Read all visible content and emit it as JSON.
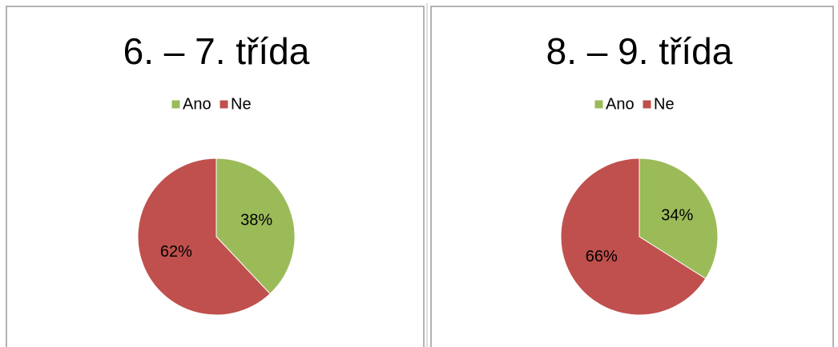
{
  "chart_data": [
    {
      "type": "pie",
      "title": "6. – 7. třída",
      "categories": [
        "Ano",
        "Ne"
      ],
      "values": [
        38,
        62
      ],
      "value_labels": [
        "38%",
        "62%"
      ],
      "colors": [
        "#9bbb59",
        "#c0504d"
      ],
      "legend": "top"
    },
    {
      "type": "pie",
      "title": "8. – 9. třída",
      "categories": [
        "Ano",
        "Ne"
      ],
      "values": [
        34,
        66
      ],
      "value_labels": [
        "34%",
        "66%"
      ],
      "colors": [
        "#9bbb59",
        "#c0504d"
      ],
      "legend": "top"
    }
  ]
}
